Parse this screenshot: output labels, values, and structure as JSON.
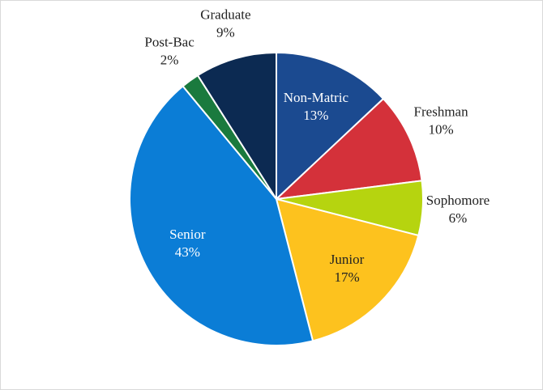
{
  "chart_data": {
    "type": "pie",
    "categories": [
      "Non-Matric",
      "Freshman",
      "Sophomore",
      "Junior",
      "Senior",
      "Post-Bac",
      "Graduate"
    ],
    "values": [
      13,
      10,
      6,
      17,
      43,
      2,
      9
    ],
    "value_labels": [
      "13%",
      "10%",
      "6%",
      "17%",
      "43%",
      "2%",
      "9%"
    ],
    "colors": [
      "#1b4a90",
      "#d4313a",
      "#b6d40f",
      "#fdc21e",
      "#0b7dd6",
      "#1a7a3e",
      "#0c2a52"
    ]
  }
}
